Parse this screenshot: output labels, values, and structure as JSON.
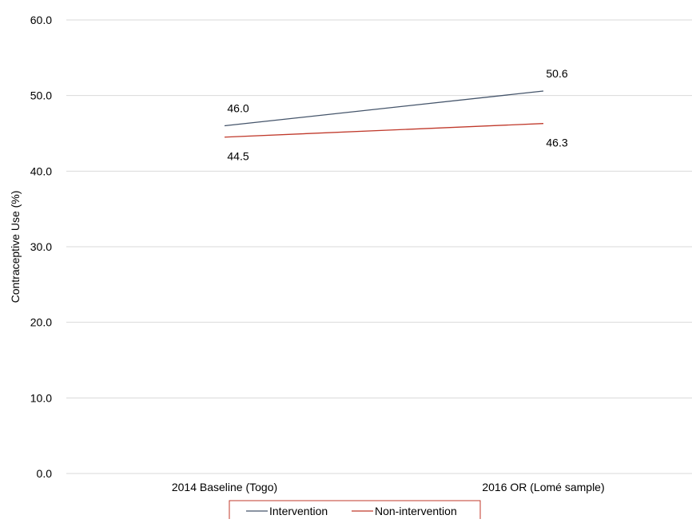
{
  "chart_data": {
    "type": "line",
    "categories": [
      "2014 Baseline (Togo)",
      "2016 OR (Lomé sample)"
    ],
    "series": [
      {
        "name": "Intervention",
        "values": [
          46.0,
          50.6
        ],
        "labels": [
          "46.0",
          "50.6"
        ],
        "color": "#44546A"
      },
      {
        "name": "Non-intervention",
        "values": [
          44.5,
          46.3
        ],
        "labels": [
          "44.5",
          "46.3"
        ],
        "color": "#C0392B"
      }
    ],
    "title": "",
    "xlabel": "",
    "ylabel": "Contraceptive Use  (%)",
    "ylim": [
      0,
      60
    ],
    "yticks": [
      0,
      10,
      20,
      30,
      40,
      50,
      60
    ],
    "ytick_labels": [
      "0.0",
      "10.0",
      "20.0",
      "30.0",
      "40.0",
      "50.0",
      "60.0"
    ],
    "grid": true,
    "gridline_color": "#D9D9D9",
    "legend_position": "bottom",
    "legend_border_color": "#C0392B"
  }
}
